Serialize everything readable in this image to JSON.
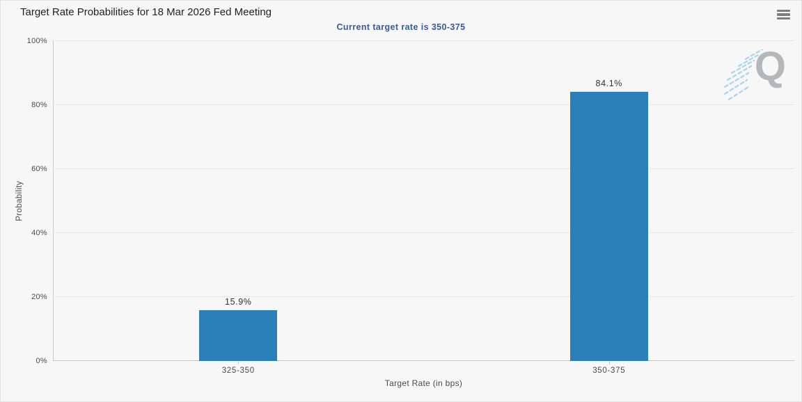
{
  "header": {
    "title": "Target Rate Probabilities for 18 Mar 2026 Fed Meeting",
    "subtitle": "Current target rate is 350-375",
    "menu_icon": "hamburger-menu-icon"
  },
  "chart_data": {
    "type": "bar",
    "title": "Target Rate Probabilities for 18 Mar 2026 Fed Meeting",
    "subtitle": "Current target rate is 350-375",
    "categories": [
      "325-350",
      "350-375"
    ],
    "values": [
      15.9,
      84.1
    ],
    "value_labels": [
      "15.9%",
      "84.1%"
    ],
    "xlabel": "Target Rate (in bps)",
    "ylabel": "Probability",
    "ylim": [
      0,
      100
    ],
    "ytick_step": 20,
    "ytick_labels": [
      "0%",
      "20%",
      "40%",
      "60%",
      "80%",
      "100%"
    ],
    "grid": "horizontal-dotted",
    "legend": "none"
  },
  "watermark": {
    "letter": "Q"
  },
  "colors": {
    "background": "#f7f7f7",
    "bar": "#2b7fb8",
    "subtitle_text": "#3b5b96",
    "title_text": "#1f1f1f",
    "axis_text": "#4a4a4a",
    "grid_dotted": "#d8d8d8",
    "axis_line": "#c9c9c9",
    "value_label_text": "#333333",
    "watermark_q": "#b4b7bb",
    "watermark_lines": "#a9d4ea"
  }
}
